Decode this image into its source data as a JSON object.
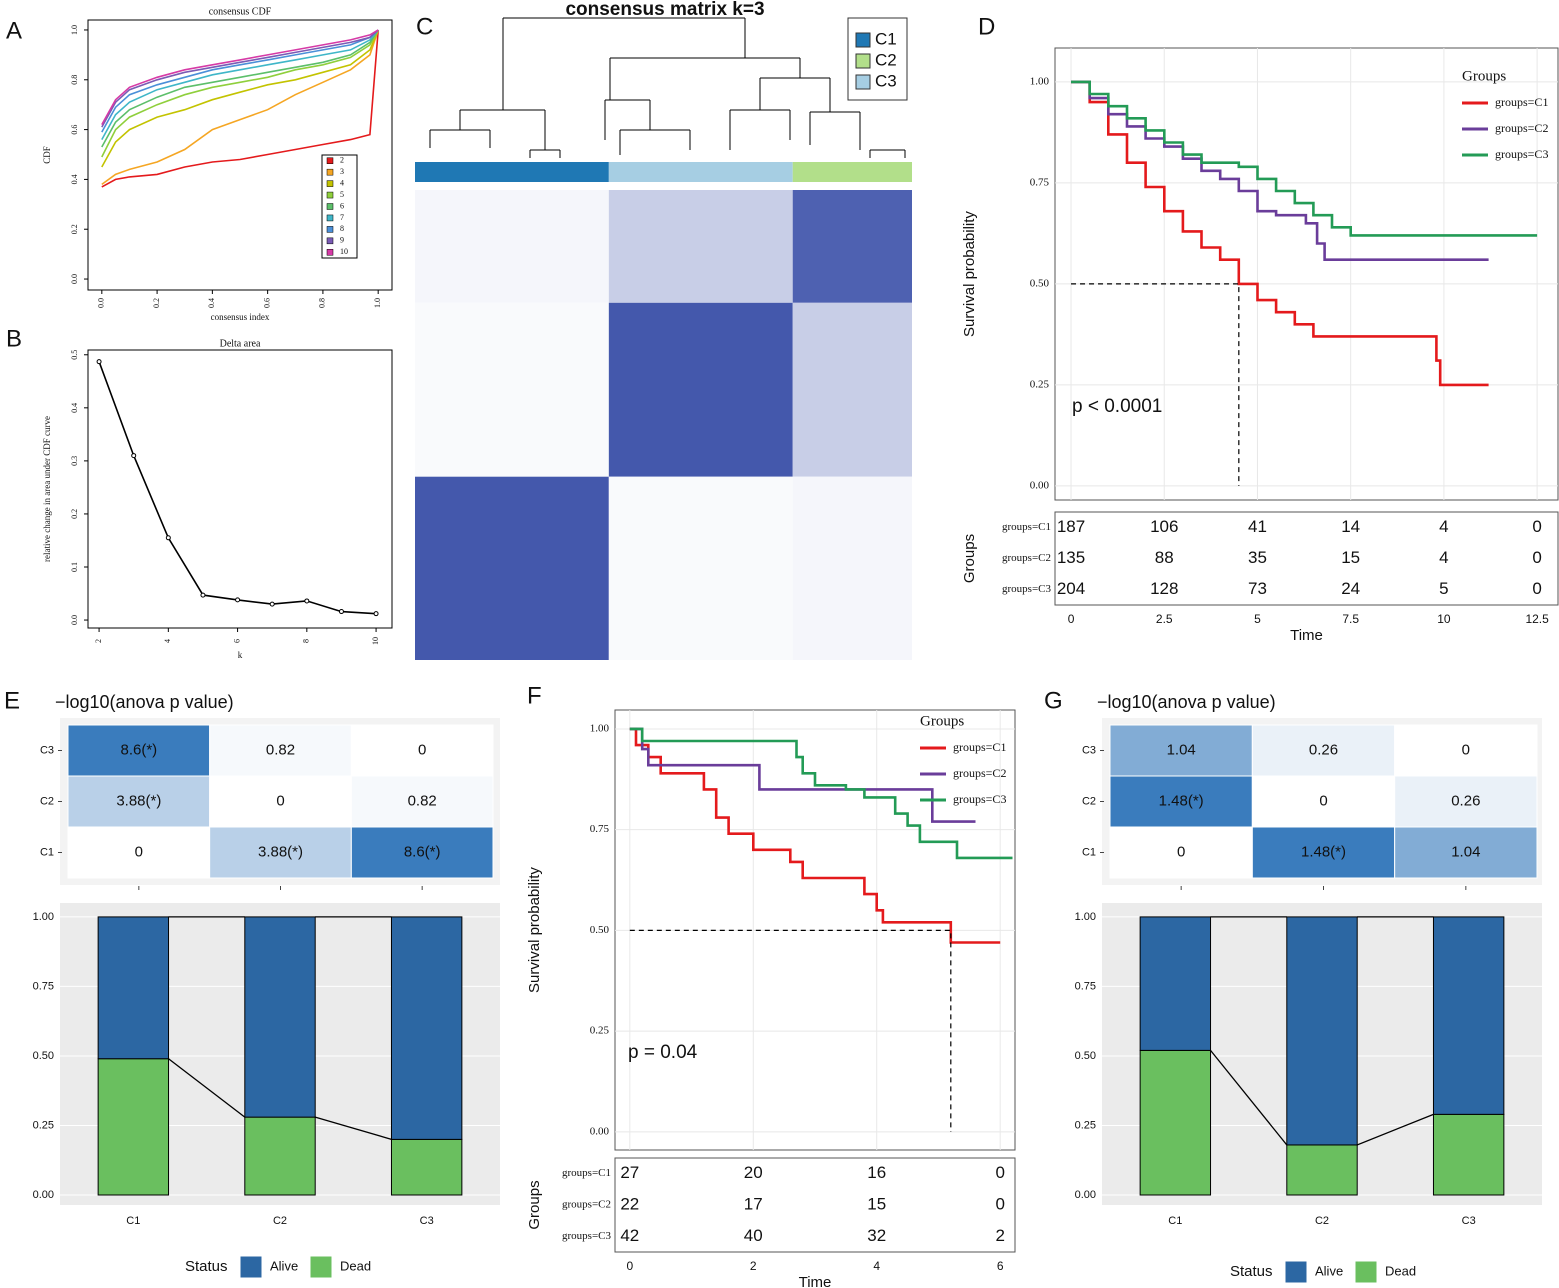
{
  "chart_data": [
    {
      "type": "line",
      "panel": "A",
      "title": "consensus CDF",
      "xlabel": "consensus index",
      "ylabel": "CDF",
      "x": [
        0,
        0.05,
        0.1,
        0.2,
        0.3,
        0.4,
        0.5,
        0.6,
        0.7,
        0.8,
        0.9,
        0.97,
        1.0
      ],
      "series": [
        {
          "name": "2",
          "color": "#e41a1c",
          "values": [
            0.37,
            0.4,
            0.41,
            0.42,
            0.45,
            0.47,
            0.48,
            0.5,
            0.52,
            0.54,
            0.56,
            0.58,
            1.0
          ]
        },
        {
          "name": "3",
          "color": "#f5a623",
          "values": [
            0.38,
            0.42,
            0.44,
            0.47,
            0.52,
            0.6,
            0.64,
            0.68,
            0.74,
            0.79,
            0.84,
            0.9,
            1.0
          ]
        },
        {
          "name": "4",
          "color": "#c3c300",
          "values": [
            0.45,
            0.55,
            0.6,
            0.65,
            0.68,
            0.72,
            0.75,
            0.78,
            0.8,
            0.83,
            0.86,
            0.92,
            1.0
          ]
        },
        {
          "name": "5",
          "color": "#8fcf3c",
          "values": [
            0.49,
            0.6,
            0.65,
            0.7,
            0.74,
            0.77,
            0.79,
            0.81,
            0.84,
            0.86,
            0.89,
            0.94,
            1.0
          ]
        },
        {
          "name": "6",
          "color": "#5cbf6a",
          "values": [
            0.53,
            0.63,
            0.68,
            0.73,
            0.77,
            0.79,
            0.81,
            0.83,
            0.85,
            0.87,
            0.9,
            0.95,
            1.0
          ]
        },
        {
          "name": "7",
          "color": "#3fb6c8",
          "values": [
            0.56,
            0.66,
            0.71,
            0.76,
            0.79,
            0.82,
            0.84,
            0.86,
            0.88,
            0.9,
            0.92,
            0.96,
            1.0
          ]
        },
        {
          "name": "8",
          "color": "#4a8fd8",
          "values": [
            0.59,
            0.69,
            0.74,
            0.78,
            0.81,
            0.84,
            0.86,
            0.88,
            0.9,
            0.92,
            0.94,
            0.97,
            1.0
          ]
        },
        {
          "name": "9",
          "color": "#7a5bb5",
          "values": [
            0.61,
            0.71,
            0.76,
            0.8,
            0.83,
            0.85,
            0.87,
            0.89,
            0.91,
            0.93,
            0.95,
            0.97,
            1.0
          ]
        },
        {
          "name": "10",
          "color": "#d63aa6",
          "values": [
            0.62,
            0.72,
            0.77,
            0.81,
            0.84,
            0.86,
            0.88,
            0.9,
            0.92,
            0.94,
            0.96,
            0.98,
            1.0
          ]
        }
      ],
      "xlim": [
        -0.05,
        1.05
      ],
      "ylim": [
        -0.044,
        1.04
      ],
      "xticks": [
        {
          "value": 0,
          "label": "0.0"
        },
        0.2,
        0.4,
        0.6,
        0.8,
        {
          "value": 1,
          "label": "1.0"
        }
      ],
      "yticks": [
        {
          "value": 0,
          "label": "0.0"
        },
        0.2,
        0.4,
        0.6,
        0.8,
        {
          "value": 1,
          "label": "1.0"
        }
      ]
    },
    {
      "type": "line",
      "panel": "B",
      "title": "Delta area",
      "xlabel": "k",
      "ylabel": "relative change in area under CDF curve",
      "x": [
        2,
        3,
        4,
        5,
        6,
        7,
        8,
        9,
        10
      ],
      "values": [
        0.487,
        0.31,
        0.155,
        0.047,
        0.038,
        0.03,
        0.036,
        0.016,
        0.012
      ],
      "color": "#000000",
      "markers": true,
      "xlim": [
        1.68,
        10.46
      ],
      "ylim": [
        -0.015,
        0.509
      ],
      "xticks": [
        2,
        4,
        6,
        8,
        10
      ],
      "yticks": [
        {
          "value": 0,
          "label": "0.0"
        },
        0.1,
        0.2,
        0.3,
        0.4,
        0.5
      ]
    },
    {
      "type": "consensus",
      "panel": "C",
      "title": "consensus matrix k=3",
      "groups": [
        {
          "name": "C1",
          "color": "#1f78b4",
          "share": 0.39
        },
        {
          "name": "C2",
          "color": "#b2df8a",
          "share": 0.24
        },
        {
          "name": "C3",
          "color": "#a6cee3",
          "share": 0.37
        }
      ],
      "col_order": [
        0,
        2,
        1
      ],
      "row_order": [
        1,
        2,
        0
      ],
      "consensus": [
        [
          0.95,
          0.05,
          0.03
        ],
        [
          0.05,
          0.9,
          0.28
        ],
        [
          0.03,
          0.28,
          0.95
        ]
      ]
    },
    {
      "type": "survival",
      "panel": "D",
      "xlabel": "Time",
      "ylabel": "Survival probability",
      "legend_title": "Groups",
      "table_title": "Groups",
      "annotation": "p < 0.0001",
      "series": [
        {
          "name": "groups=C1",
          "color": "#e41a1c",
          "x": [
            0,
            0.5,
            1,
            1.5,
            2,
            2.5,
            3,
            3.5,
            4,
            4.5,
            5,
            5.5,
            6,
            6.5,
            9.8,
            9.9,
            11.2
          ],
          "values": [
            1,
            0.95,
            0.87,
            0.8,
            0.74,
            0.68,
            0.63,
            0.59,
            0.56,
            0.5,
            0.46,
            0.43,
            0.4,
            0.37,
            0.31,
            0.25,
            0.25
          ],
          "at_risk": [
            187,
            106,
            41,
            14,
            4,
            0
          ]
        },
        {
          "name": "groups=C2",
          "color": "#6a3d9a",
          "x": [
            0,
            0.5,
            1,
            1.5,
            2,
            2.5,
            3,
            3.5,
            4,
            4.5,
            5,
            5.5,
            6.3,
            6.6,
            6.8,
            11.2
          ],
          "values": [
            1,
            0.96,
            0.92,
            0.89,
            0.86,
            0.84,
            0.81,
            0.78,
            0.76,
            0.73,
            0.68,
            0.67,
            0.65,
            0.6,
            0.56,
            0.56
          ],
          "at_risk": [
            135,
            88,
            35,
            15,
            4,
            0
          ]
        },
        {
          "name": "groups=C3",
          "color": "#239b56",
          "x": [
            0,
            0.5,
            1,
            1.5,
            2,
            2.5,
            3,
            3.5,
            4.5,
            5,
            5.5,
            6,
            6.5,
            7,
            7.5,
            12.5
          ],
          "values": [
            1,
            0.97,
            0.94,
            0.91,
            0.88,
            0.85,
            0.82,
            0.8,
            0.79,
            0.76,
            0.73,
            0.7,
            0.67,
            0.64,
            0.62,
            0.62
          ],
          "at_risk": [
            204,
            128,
            73,
            24,
            5,
            0
          ]
        }
      ],
      "xlim": [
        -0.43,
        13.06
      ],
      "ylim": [
        -0.035,
        1.084
      ],
      "xticks": [
        0,
        2.5,
        5,
        7.5,
        10,
        12.5
      ],
      "yticks": [
        {
          "value": 0,
          "label": "0.00"
        },
        0.25,
        {
          "value": 0.5,
          "label": "0.50"
        },
        0.75,
        {
          "value": 1,
          "label": "1.00"
        }
      ],
      "grid": true
    },
    {
      "type": "pairwise",
      "panel": "E",
      "title": "−log10(anova p value)",
      "categories": [
        "C1",
        "C2",
        "C3"
      ],
      "values": [
        [
          0,
          3.88,
          8.6
        ],
        [
          3.88,
          0,
          0.82
        ],
        [
          8.6,
          0.82,
          0
        ]
      ],
      "value_labels": [
        [
          "0",
          "3.88(*)",
          "8.6(*)"
        ],
        [
          "3.88(*)",
          "0",
          "0.82"
        ],
        [
          "8.6(*)",
          "0.82",
          "0"
        ]
      ],
      "color": "#3a7cbd"
    },
    {
      "type": "stacked_bar",
      "categories": [
        "C1",
        "C2",
        "C3"
      ],
      "legend_title": "Status",
      "series": [
        {
          "name": "Alive",
          "color": "#2c67a3",
          "values": [
            0.51,
            0.72,
            0.8
          ]
        },
        {
          "name": "Dead",
          "color": "#6abf5f",
          "values": [
            0.49,
            0.28,
            0.2
          ]
        }
      ],
      "ylim": [
        -0.036,
        1.05
      ],
      "yticks": [
        {
          "value": 0,
          "label": "0.00"
        },
        0.25,
        {
          "value": 0.5,
          "label": "0.50"
        },
        0.75,
        {
          "value": 1,
          "label": "1.00"
        }
      ],
      "grid": true
    },
    {
      "type": "survival",
      "panel": "F",
      "xlabel": "Time",
      "ylabel": "Survival probability",
      "legend_title": "Groups",
      "table_title": "Groups",
      "annotation": "p = 0.04",
      "series": [
        {
          "name": "groups=C1",
          "color": "#e41a1c",
          "x": [
            0,
            0.1,
            0.3,
            0.5,
            1.2,
            1.4,
            1.6,
            2,
            2.6,
            2.8,
            3.8,
            4,
            4.1,
            5.2,
            6
          ],
          "values": [
            1,
            0.96,
            0.93,
            0.89,
            0.85,
            0.78,
            0.74,
            0.7,
            0.67,
            0.63,
            0.59,
            0.55,
            0.52,
            0.47,
            0.47
          ],
          "at_risk": [
            27,
            20,
            16,
            0
          ]
        },
        {
          "name": "groups=C2",
          "color": "#6a3d9a",
          "x": [
            0,
            0.2,
            0.3,
            2.1,
            4.9,
            5.6
          ],
          "values": [
            1,
            0.95,
            0.91,
            0.85,
            0.77,
            0.77
          ],
          "at_risk": [
            22,
            17,
            15,
            0
          ]
        },
        {
          "name": "groups=C3",
          "color": "#239b56",
          "x": [
            0,
            0.2,
            2.7,
            2.8,
            3,
            3.5,
            3.8,
            4.3,
            4.5,
            4.7,
            5.3,
            6.2
          ],
          "values": [
            1,
            0.97,
            0.93,
            0.89,
            0.86,
            0.85,
            0.83,
            0.79,
            0.76,
            0.72,
            0.68,
            0.68
          ],
          "at_risk": [
            42,
            40,
            32,
            2
          ]
        }
      ],
      "xlim": [
        -0.24,
        6.24
      ],
      "ylim": [
        -0.045,
        1.047
      ],
      "xticks": [
        0,
        2,
        4,
        6
      ],
      "yticks": [
        {
          "value": 0,
          "label": "0.00"
        },
        0.25,
        {
          "value": 0.5,
          "label": "0.50"
        },
        0.75,
        {
          "value": 1,
          "label": "1.00"
        }
      ],
      "grid": true
    },
    {
      "type": "pairwise",
      "panel": "G",
      "title": "−log10(anova p value)",
      "categories": [
        "C1",
        "C2",
        "C3"
      ],
      "values": [
        [
          0,
          1.48,
          1.04
        ],
        [
          1.48,
          0,
          0.26
        ],
        [
          1.04,
          0.26,
          0
        ]
      ],
      "value_labels": [
        [
          "0",
          "1.48(*)",
          "1.04"
        ],
        [
          "1.48(*)",
          "0",
          "0.26"
        ],
        [
          "1.04",
          "0.26",
          "0"
        ]
      ],
      "color": "#3a7cbd"
    },
    {
      "type": "stacked_bar",
      "categories": [
        "C1",
        "C2",
        "C3"
      ],
      "legend_title": "Status",
      "series": [
        {
          "name": "Alive",
          "color": "#2c67a3",
          "values": [
            0.48,
            0.82,
            0.71
          ]
        },
        {
          "name": "Dead",
          "color": "#6abf5f",
          "values": [
            0.52,
            0.18,
            0.29
          ]
        }
      ],
      "ylim": [
        -0.036,
        1.05
      ],
      "yticks": [
        {
          "value": 0,
          "label": "0.00"
        },
        0.25,
        {
          "value": 0.5,
          "label": "0.50"
        },
        0.75,
        {
          "value": 1,
          "label": "1.00"
        }
      ],
      "grid": true
    }
  ]
}
